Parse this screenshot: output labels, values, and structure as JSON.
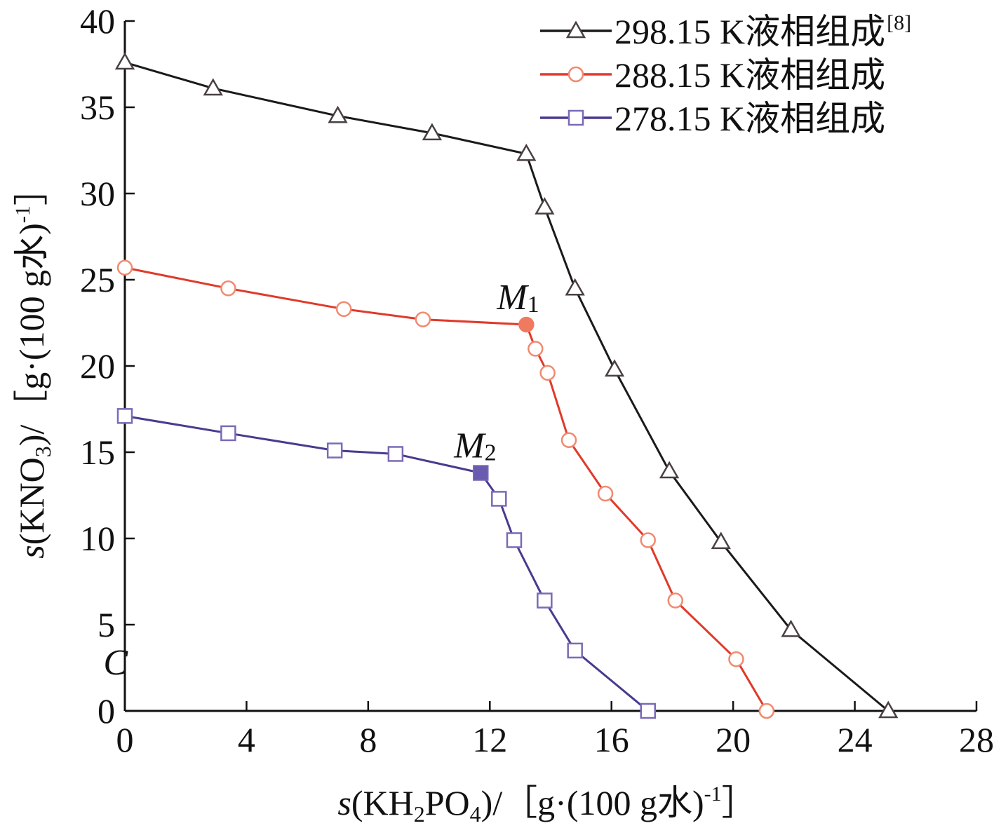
{
  "chart_data": {
    "type": "line",
    "xlabel_parts": [
      "s",
      "(KH",
      "2",
      "PO",
      "4",
      ")/［g·(100 g水)",
      "-1",
      "］"
    ],
    "ylabel_parts": [
      "s",
      "(KNO",
      "3",
      ")/［g·(100 g水)",
      "-1",
      "］"
    ],
    "xlim": [
      0,
      28
    ],
    "ylim": [
      0,
      40
    ],
    "x_ticks": [
      "0",
      "4",
      "8",
      "12",
      "16",
      "20",
      "24",
      "28"
    ],
    "y_ticks": [
      "0",
      "5",
      "10",
      "15",
      "20",
      "25",
      "30",
      "35",
      "40"
    ],
    "grid": false,
    "legend_position": "top-right",
    "series": [
      {
        "name": "298.15 K液相组成",
        "name_sup": "[8]",
        "marker": "triangle",
        "color": "#1a1a1a",
        "marker_stroke": "#4a4040",
        "points": [
          [
            0,
            37.6
          ],
          [
            2.9,
            36.1
          ],
          [
            7.0,
            34.5
          ],
          [
            10.1,
            33.5
          ],
          [
            13.2,
            32.3
          ],
          [
            13.8,
            29.2
          ],
          [
            14.8,
            24.5
          ],
          [
            16.1,
            19.8
          ],
          [
            17.9,
            13.9
          ],
          [
            19.6,
            9.8
          ],
          [
            21.9,
            4.7
          ],
          [
            25.1,
            0
          ]
        ]
      },
      {
        "name": "288.15 K液相组成",
        "marker": "circle",
        "color": "#e03a2a",
        "marker_stroke": "#f08a70",
        "points": [
          [
            0,
            25.7
          ],
          [
            3.4,
            24.5
          ],
          [
            7.2,
            23.3
          ],
          [
            9.8,
            22.7
          ],
          [
            13.2,
            22.4
          ],
          [
            13.5,
            21.0
          ],
          [
            13.9,
            19.6
          ],
          [
            14.6,
            15.7
          ],
          [
            15.8,
            12.6
          ],
          [
            17.2,
            9.9
          ],
          [
            18.1,
            6.4
          ],
          [
            20.1,
            3.0
          ],
          [
            21.1,
            0
          ]
        ]
      },
      {
        "name": "278.15 K液相组成",
        "marker": "square",
        "color": "#4a3a8e",
        "marker_stroke": "#7a6ab8",
        "points": [
          [
            0,
            17.1
          ],
          [
            3.4,
            16.1
          ],
          [
            6.9,
            15.1
          ],
          [
            8.9,
            14.9
          ],
          [
            11.7,
            13.8
          ],
          [
            12.3,
            12.3
          ],
          [
            12.8,
            9.9
          ],
          [
            13.8,
            6.4
          ],
          [
            14.8,
            3.5
          ],
          [
            17.2,
            0
          ]
        ]
      }
    ],
    "annotations": [
      {
        "label": "M",
        "sub": "1",
        "x": 13.2,
        "y": 22.4,
        "marker_color": "#f07a60"
      },
      {
        "label": "M",
        "sub": "2",
        "x": 11.7,
        "y": 13.8,
        "marker_color": "#6a5ab0"
      }
    ],
    "extra_labels": [
      {
        "text": "C",
        "x": -0.8,
        "y": 3.0
      }
    ]
  }
}
